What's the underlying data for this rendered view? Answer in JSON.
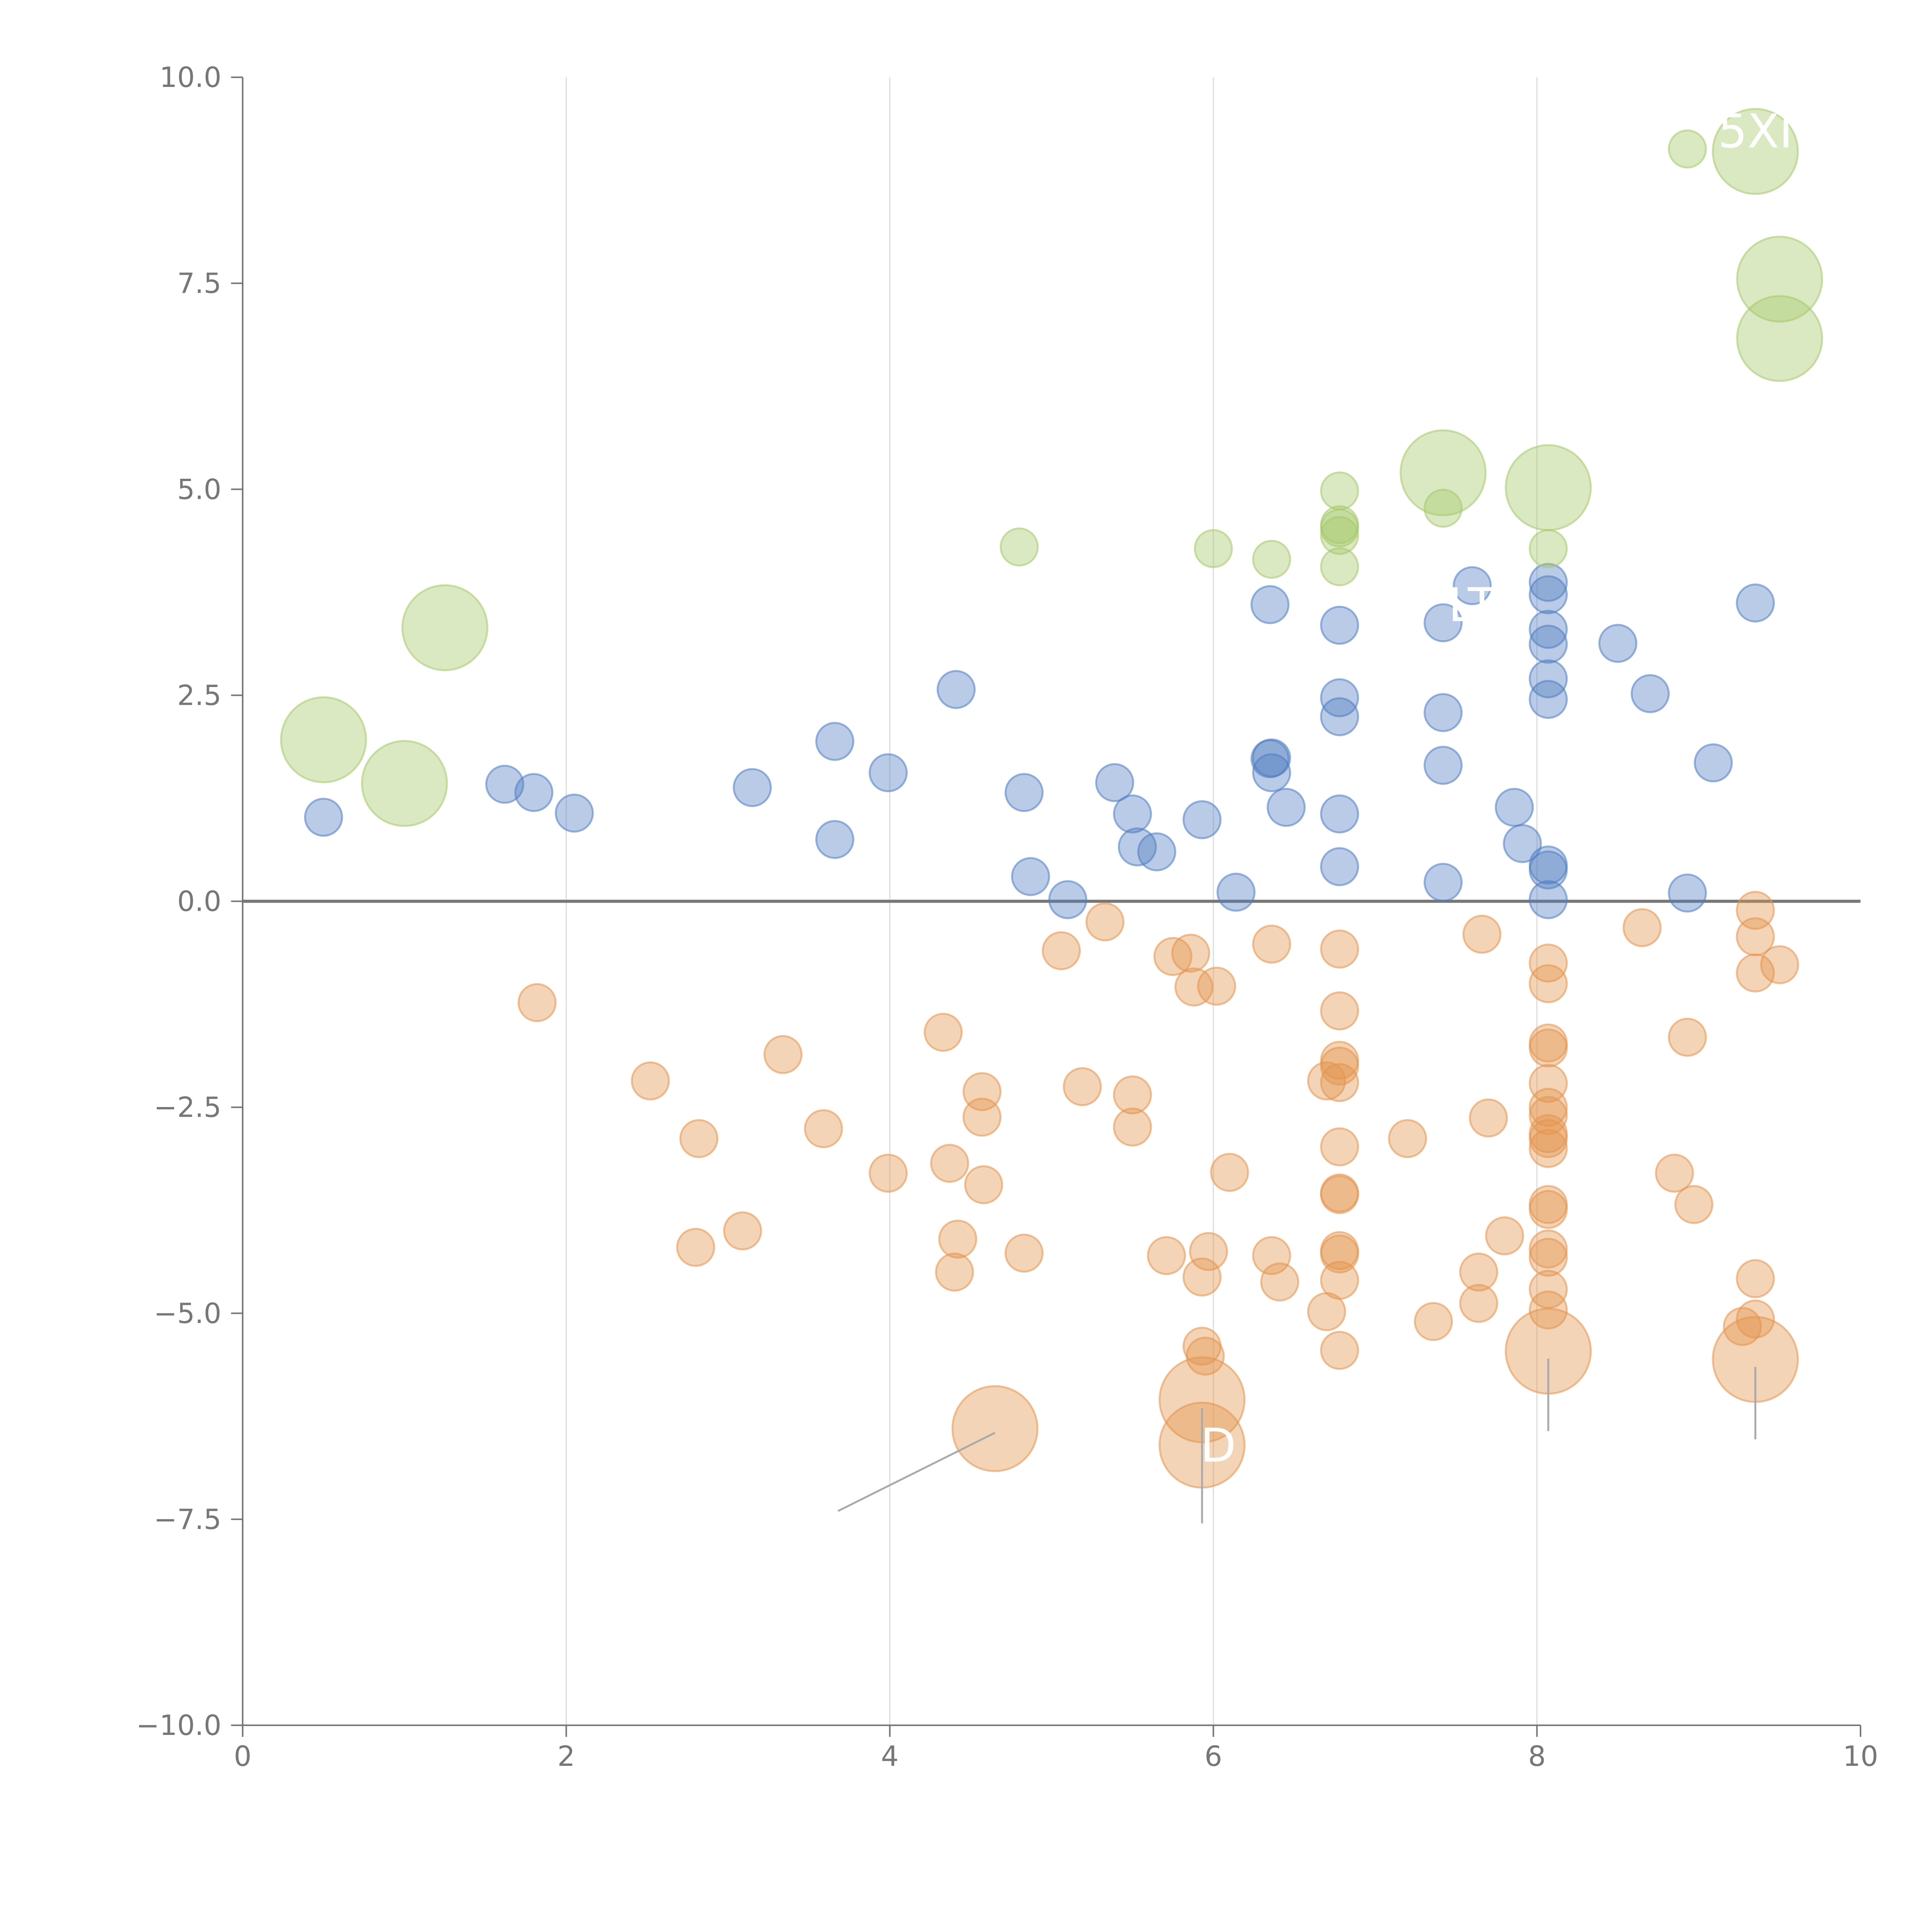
{
  "colors": {
    "positive": "#4f7ec1",
    "negative": "#e4934c",
    "highlight": "#a6c96a",
    "axis": "#777777",
    "grid": "#dcdcdc",
    "label": "#ffffff"
  },
  "chart_data": {
    "type": "scatter",
    "title": "",
    "xlabel": "",
    "ylabel": "",
    "xlim": [
      0,
      10
    ],
    "ylim": [
      -10,
      10
    ],
    "x_ticks": [
      0,
      2,
      4,
      6,
      8,
      10
    ],
    "x_tick_labels": [
      "0",
      "2",
      "4",
      "6",
      "8",
      "10"
    ],
    "y_ticks": [
      10,
      7.5,
      5,
      2.5,
      0,
      -2.5,
      -5,
      -7.5,
      -10
    ],
    "y_tick_labels": [
      "10.0",
      "7.5",
      "5.0",
      "2.5",
      "0.0",
      "−2.5",
      "−5.0",
      "−7.5",
      "−10.0"
    ],
    "grid_x": [
      2,
      4,
      6,
      8
    ],
    "zero_line": 0,
    "series": [
      {
        "name": "positive",
        "color_key": "positive",
        "size": "small",
        "points": [
          [
            0.5,
            1.02
          ],
          [
            1.62,
            1.42
          ],
          [
            1.8,
            1.32
          ],
          [
            2.05,
            1.07
          ],
          [
            3.15,
            1.38
          ],
          [
            3.66,
            1.94
          ],
          [
            3.66,
            0.75
          ],
          [
            3.99,
            1.56
          ],
          [
            4.41,
            2.57
          ],
          [
            4.83,
            1.32
          ],
          [
            4.87,
            0.3
          ],
          [
            5.1,
            0.02
          ],
          [
            5.39,
            1.44
          ],
          [
            5.5,
            1.06
          ],
          [
            5.53,
            0.66
          ],
          [
            5.65,
            0.6
          ],
          [
            5.93,
            0.99
          ],
          [
            6.14,
            0.11
          ],
          [
            6.35,
            3.6
          ],
          [
            6.35,
            1.73
          ],
          [
            6.36,
            1.56
          ],
          [
            6.36,
            1.74
          ],
          [
            6.45,
            1.14
          ],
          [
            6.78,
            3.35
          ],
          [
            6.78,
            2.47
          ],
          [
            6.78,
            2.24
          ],
          [
            6.78,
            1.06
          ],
          [
            6.78,
            0.42
          ],
          [
            7.42,
            3.38
          ],
          [
            7.42,
            2.29
          ],
          [
            7.42,
            1.65
          ],
          [
            7.42,
            0.23
          ],
          [
            7.6,
            3.83
          ],
          [
            7.86,
            1.14
          ],
          [
            7.91,
            0.7
          ],
          [
            8.07,
            3.87
          ],
          [
            8.07,
            3.72
          ],
          [
            8.07,
            3.3
          ],
          [
            8.07,
            3.12
          ],
          [
            8.07,
            2.7
          ],
          [
            8.07,
            2.45
          ],
          [
            8.07,
            0.44
          ],
          [
            8.07,
            0.38
          ],
          [
            8.07,
            0.02
          ],
          [
            8.5,
            3.13
          ],
          [
            8.7,
            2.52
          ],
          [
            8.93,
            0.1
          ],
          [
            9.09,
            1.68
          ],
          [
            9.35,
            3.62
          ]
        ]
      },
      {
        "name": "negative",
        "color_key": "negative",
        "size": "small",
        "points": [
          [
            1.82,
            -1.23
          ],
          [
            2.52,
            -2.18
          ],
          [
            2.8,
            -4.2
          ],
          [
            2.82,
            -2.88
          ],
          [
            3.09,
            -4.0
          ],
          [
            3.34,
            -1.86
          ],
          [
            3.59,
            -2.76
          ],
          [
            3.99,
            -3.3
          ],
          [
            4.33,
            -1.59
          ],
          [
            4.37,
            -3.18
          ],
          [
            4.4,
            -4.5
          ],
          [
            4.42,
            -4.1
          ],
          [
            4.57,
            -2.31
          ],
          [
            4.57,
            -2.62
          ],
          [
            4.58,
            -3.44
          ],
          [
            4.83,
            -4.27
          ],
          [
            5.06,
            -0.6
          ],
          [
            5.19,
            -2.25
          ],
          [
            5.33,
            -0.25
          ],
          [
            5.5,
            -2.35
          ],
          [
            5.5,
            -2.74
          ],
          [
            5.71,
            -4.3
          ],
          [
            5.75,
            -0.67
          ],
          [
            5.86,
            -0.63
          ],
          [
            5.88,
            -1.04
          ],
          [
            5.93,
            -4.56
          ],
          [
            5.93,
            -5.4
          ],
          [
            5.95,
            -5.52
          ],
          [
            5.97,
            -4.25
          ],
          [
            6.02,
            -1.03
          ],
          [
            6.1,
            -3.29
          ],
          [
            6.36,
            -4.3
          ],
          [
            6.36,
            -0.52
          ],
          [
            6.41,
            -4.62
          ],
          [
            6.7,
            -2.18
          ],
          [
            6.7,
            -4.98
          ],
          [
            6.78,
            -0.58
          ],
          [
            6.78,
            -1.33
          ],
          [
            6.78,
            -1.93
          ],
          [
            6.78,
            -2.0
          ],
          [
            6.78,
            -2.2
          ],
          [
            6.78,
            -2.98
          ],
          [
            6.78,
            -3.54
          ],
          [
            6.78,
            -3.56
          ],
          [
            6.78,
            -4.24
          ],
          [
            6.78,
            -4.28
          ],
          [
            6.78,
            -4.6
          ],
          [
            6.78,
            -5.45
          ],
          [
            7.2,
            -2.88
          ],
          [
            7.36,
            -5.1
          ],
          [
            7.64,
            -4.5
          ],
          [
            7.64,
            -4.88
          ],
          [
            7.66,
            -0.4
          ],
          [
            7.7,
            -2.63
          ],
          [
            7.8,
            -4.06
          ],
          [
            8.07,
            -0.75
          ],
          [
            8.07,
            -1.0
          ],
          [
            8.07,
            -1.72
          ],
          [
            8.07,
            -1.78
          ],
          [
            8.07,
            -2.21
          ],
          [
            8.07,
            -2.5
          ],
          [
            8.07,
            -2.6
          ],
          [
            8.07,
            -2.82
          ],
          [
            8.07,
            -2.88
          ],
          [
            8.07,
            -3.0
          ],
          [
            8.07,
            -3.68
          ],
          [
            8.07,
            -3.74
          ],
          [
            8.07,
            -4.22
          ],
          [
            8.07,
            -4.32
          ],
          [
            8.07,
            -4.71
          ],
          [
            8.07,
            -4.96
          ],
          [
            8.65,
            -0.32
          ],
          [
            8.85,
            -3.3
          ],
          [
            8.93,
            -1.65
          ],
          [
            8.97,
            -3.68
          ],
          [
            9.27,
            -5.16
          ],
          [
            9.35,
            -0.11
          ],
          [
            9.35,
            -0.43
          ],
          [
            9.35,
            -0.87
          ],
          [
            9.35,
            -4.58
          ],
          [
            9.35,
            -5.07
          ],
          [
            9.5,
            -0.77
          ]
        ]
      },
      {
        "name": "highlight",
        "color_key": "highlight",
        "size": "small",
        "points": [
          [
            4.8,
            4.3
          ],
          [
            6.0,
            4.28
          ],
          [
            6.36,
            4.15
          ],
          [
            6.78,
            4.98
          ],
          [
            6.78,
            4.57
          ],
          [
            6.78,
            4.53
          ],
          [
            6.78,
            4.44
          ],
          [
            6.78,
            4.06
          ],
          [
            7.42,
            4.77
          ],
          [
            8.07,
            4.28
          ],
          [
            8.93,
            9.13
          ]
        ]
      }
    ],
    "large_bubbles": [
      {
        "name": "highlight-large",
        "color_key": "highlight",
        "points": [
          [
            0.5,
            1.96
          ],
          [
            1.0,
            1.43
          ],
          [
            1.25,
            3.32
          ],
          [
            7.42,
            5.2
          ],
          [
            8.07,
            5.02
          ],
          [
            9.35,
            9.1
          ],
          [
            9.5,
            7.55
          ],
          [
            9.5,
            6.83
          ]
        ]
      },
      {
        "name": "negative-large",
        "color_key": "negative",
        "points": [
          [
            4.65,
            -6.4
          ],
          [
            5.93,
            -6.05
          ],
          [
            5.93,
            -6.6
          ],
          [
            8.07,
            -5.46
          ],
          [
            9.35,
            -5.56
          ]
        ]
      }
    ],
    "annotations": [
      {
        "text": "5XI",
        "x": 9.35,
        "y": 9.15
      },
      {
        "text": "LT",
        "x": 7.6,
        "y": 3.4
      },
      {
        "text": "D",
        "x": 6.03,
        "y": -6.8
      }
    ],
    "leader_lines": [
      {
        "x1": 4.65,
        "y1": -6.45,
        "x2": 3.68,
        "y2": -7.4
      },
      {
        "x1": 5.93,
        "y1": -6.15,
        "x2": 5.93,
        "y2": -7.55
      },
      {
        "x1": 8.07,
        "y1": -5.55,
        "x2": 8.07,
        "y2": -6.43
      },
      {
        "x1": 9.35,
        "y1": -5.65,
        "x2": 9.35,
        "y2": -6.53
      }
    ]
  }
}
